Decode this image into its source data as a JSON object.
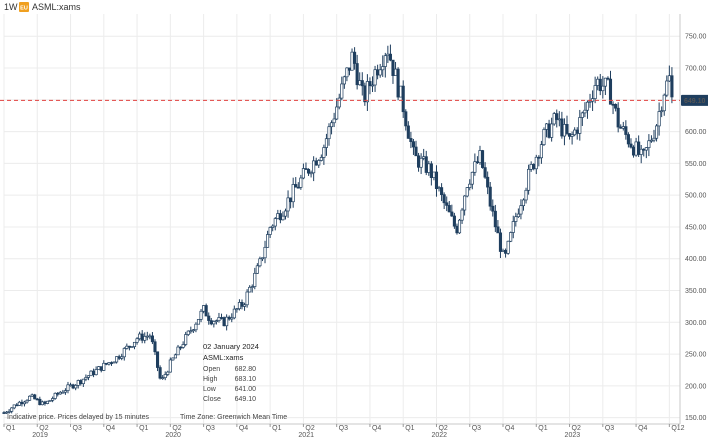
{
  "header": {
    "interval": "1W",
    "symbol_badge": "EU",
    "symbol": "ASML:xams"
  },
  "colors": {
    "candle": "#1f3e5e",
    "price_line": "#e0403f",
    "price_tag_bg": "#1f3e5e",
    "grid": "#ececec",
    "axis": "#9a9a9a",
    "badge": "#f0a020"
  },
  "tooltip": {
    "date": "02 January 2024",
    "symbol": "ASML:xams",
    "rows": [
      {
        "label": "Open",
        "value": "682.80"
      },
      {
        "label": "High",
        "value": "683.10"
      },
      {
        "label": "Low",
        "value": "641.00"
      },
      {
        "label": "Close",
        "value": "649.10"
      }
    ]
  },
  "footer": {
    "disclaimer": "Indicative price. Prices delayed by 15 minutes",
    "timezone": "Time Zone: Greenwich Mean Time"
  },
  "chart_data": {
    "type": "candlestick",
    "y_ticks": [
      "150.00",
      "200.00",
      "250.00",
      "300.00",
      "350.00",
      "400.00",
      "450.00",
      "500.00",
      "550.00",
      "600.00",
      "650.00",
      "700.00",
      "750.00"
    ],
    "ylim": [
      140,
      785
    ],
    "xlim": [
      2019.0,
      2024.08
    ],
    "current_price": 649.1,
    "current_price_label": "649.10",
    "quarter_ticks": [
      {
        "label": "Q1",
        "t": 2019.0
      },
      {
        "label": "Q2",
        "t": 2019.25
      },
      {
        "label": "Q3",
        "t": 2019.5
      },
      {
        "label": "Q4",
        "t": 2019.75
      },
      {
        "label": "Q1",
        "t": 2020.0
      },
      {
        "label": "Q2",
        "t": 2020.25
      },
      {
        "label": "Q3",
        "t": 2020.5
      },
      {
        "label": "Q4",
        "t": 2020.75
      },
      {
        "label": "Q1",
        "t": 2021.0
      },
      {
        "label": "Q2",
        "t": 2021.25
      },
      {
        "label": "Q3",
        "t": 2021.5
      },
      {
        "label": "Q4",
        "t": 2021.75
      },
      {
        "label": "Q1",
        "t": 2022.0
      },
      {
        "label": "Q2",
        "t": 2022.25
      },
      {
        "label": "Q3",
        "t": 2022.5
      },
      {
        "label": "Q4",
        "t": 2022.75
      },
      {
        "label": "Q1",
        "t": 2023.0
      },
      {
        "label": "Q2",
        "t": 2023.25
      },
      {
        "label": "Q3",
        "t": 2023.5
      },
      {
        "label": "Q4",
        "t": 2023.75
      },
      {
        "label": "Q1",
        "t": 2024.0
      },
      {
        "label": "2",
        "t": 2024.07
      }
    ],
    "year_ticks": [
      {
        "label": "2019",
        "t": 2019.25
      },
      {
        "label": "2020",
        "t": 2020.25
      },
      {
        "label": "2021",
        "t": 2021.25
      },
      {
        "label": "2022",
        "t": 2022.25
      },
      {
        "label": "2023",
        "t": 2023.25
      }
    ],
    "price_path": [
      {
        "t": 2019.0,
        "v": 158
      },
      {
        "t": 2019.1,
        "v": 172
      },
      {
        "t": 2019.2,
        "v": 183
      },
      {
        "t": 2019.3,
        "v": 170
      },
      {
        "t": 2019.42,
        "v": 190
      },
      {
        "t": 2019.55,
        "v": 205
      },
      {
        "t": 2019.7,
        "v": 225
      },
      {
        "t": 2019.85,
        "v": 245
      },
      {
        "t": 2020.0,
        "v": 275
      },
      {
        "t": 2020.1,
        "v": 280
      },
      {
        "t": 2020.18,
        "v": 205
      },
      {
        "t": 2020.25,
        "v": 235
      },
      {
        "t": 2020.35,
        "v": 270
      },
      {
        "t": 2020.5,
        "v": 320
      },
      {
        "t": 2020.55,
        "v": 305
      },
      {
        "t": 2020.65,
        "v": 300
      },
      {
        "t": 2020.8,
        "v": 330
      },
      {
        "t": 2020.92,
        "v": 390
      },
      {
        "t": 2021.0,
        "v": 450
      },
      {
        "t": 2021.1,
        "v": 480
      },
      {
        "t": 2021.25,
        "v": 530
      },
      {
        "t": 2021.4,
        "v": 575
      },
      {
        "t": 2021.5,
        "v": 640
      },
      {
        "t": 2021.62,
        "v": 720
      },
      {
        "t": 2021.7,
        "v": 650
      },
      {
        "t": 2021.8,
        "v": 700
      },
      {
        "t": 2021.88,
        "v": 735
      },
      {
        "t": 2022.0,
        "v": 640
      },
      {
        "t": 2022.08,
        "v": 560
      },
      {
        "t": 2022.2,
        "v": 540
      },
      {
        "t": 2022.3,
        "v": 490
      },
      {
        "t": 2022.4,
        "v": 445
      },
      {
        "t": 2022.48,
        "v": 520
      },
      {
        "t": 2022.58,
        "v": 560
      },
      {
        "t": 2022.66,
        "v": 480
      },
      {
        "t": 2022.76,
        "v": 395
      },
      {
        "t": 2022.85,
        "v": 470
      },
      {
        "t": 2022.95,
        "v": 535
      },
      {
        "t": 2023.05,
        "v": 590
      },
      {
        "t": 2023.15,
        "v": 620
      },
      {
        "t": 2023.25,
        "v": 585
      },
      {
        "t": 2023.35,
        "v": 625
      },
      {
        "t": 2023.45,
        "v": 680
      },
      {
        "t": 2023.55,
        "v": 665
      },
      {
        "t": 2023.62,
        "v": 610
      },
      {
        "t": 2023.72,
        "v": 580
      },
      {
        "t": 2023.8,
        "v": 555
      },
      {
        "t": 2023.9,
        "v": 610
      },
      {
        "t": 2023.96,
        "v": 665
      },
      {
        "t": 2024.0,
        "v": 683
      },
      {
        "t": 2024.02,
        "v": 649
      }
    ]
  }
}
